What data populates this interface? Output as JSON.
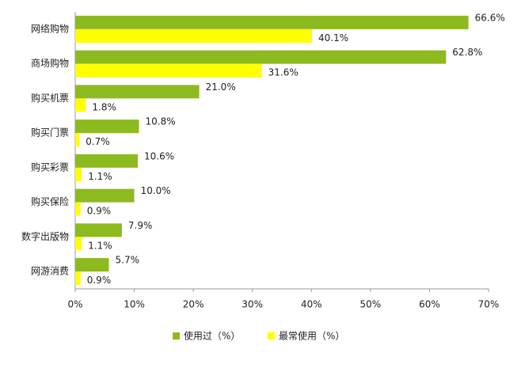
{
  "chart_data": {
    "type": "bar",
    "orientation": "horizontal",
    "categories": [
      "网络购物",
      "商场购物",
      "购买机票",
      "购买门票",
      "购买彩票",
      "购买保险",
      "数字出版物",
      "网游消费"
    ],
    "series": [
      {
        "name": "使用过（%）",
        "color": "#8dba1e",
        "values": [
          66.6,
          62.8,
          21.0,
          10.8,
          10.6,
          10.0,
          7.9,
          5.7
        ],
        "value_labels": [
          "66.6%",
          "62.8%",
          "21.0%",
          "10.8%",
          "10.6%",
          "10.0%",
          "7.9%",
          "5.7%"
        ]
      },
      {
        "name": "最常使用（%）",
        "color": "#ffff00",
        "values": [
          40.1,
          31.6,
          1.8,
          0.7,
          1.1,
          0.9,
          1.1,
          0.9
        ],
        "value_labels": [
          "40.1%",
          "31.6%",
          "1.8%",
          "0.7%",
          "1.1%",
          "0.9%",
          "1.1%",
          "0.9%"
        ]
      }
    ],
    "xlim": [
      0,
      70
    ],
    "xticks": [
      {
        "value": 0,
        "label": "0%"
      },
      {
        "value": 10,
        "label": "10%"
      },
      {
        "value": 20,
        "label": "20%"
      },
      {
        "value": 30,
        "label": "30%"
      },
      {
        "value": 40,
        "label": "40%"
      },
      {
        "value": 50,
        "label": "50%"
      },
      {
        "value": 60,
        "label": "60%"
      },
      {
        "value": 70,
        "label": "70%"
      }
    ],
    "legend": "bottom"
  }
}
